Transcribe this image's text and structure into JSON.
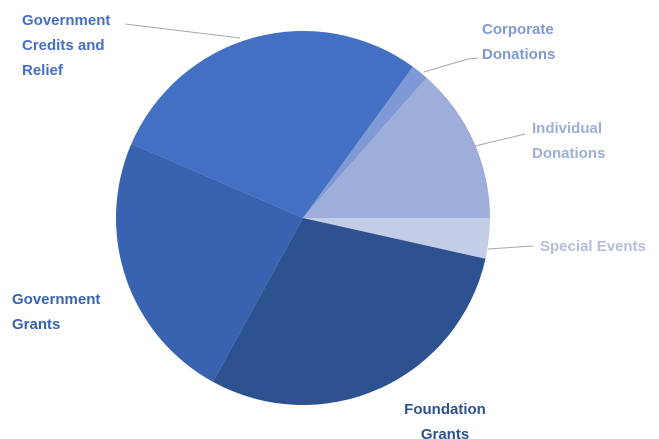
{
  "chart_data": {
    "type": "pie",
    "title": "",
    "start_angle_deg": 0,
    "direction": "clockwise",
    "slices": [
      {
        "label": [
          "Special Events"
        ],
        "value": 3.5,
        "color": "#c3cde8",
        "label_color": "#b3bedb"
      },
      {
        "label": [
          "Foundation",
          "Grants"
        ],
        "value": 29.5,
        "color": "#2e5290",
        "label_color": "#2e5290"
      },
      {
        "label": [
          "Government",
          "Grants"
        ],
        "value": 23.5,
        "color": "#3963b0",
        "label_color": "#3963b0"
      },
      {
        "label": [
          "Government",
          "Credits and",
          "Relief"
        ],
        "value": 28.5,
        "color": "#4470c4",
        "label_color": "#4470c4"
      },
      {
        "label": [
          "Corporate",
          "Donations"
        ],
        "value": 1.5,
        "color": "#7f98d6",
        "label_color": "#7f98d6"
      },
      {
        "label": [
          "Individual",
          "Donations"
        ],
        "value": 13.5,
        "color": "#9eaedb",
        "label_color": "#9eaedb"
      }
    ],
    "legend": "none",
    "label_position": "outside-with-leader-lines"
  }
}
